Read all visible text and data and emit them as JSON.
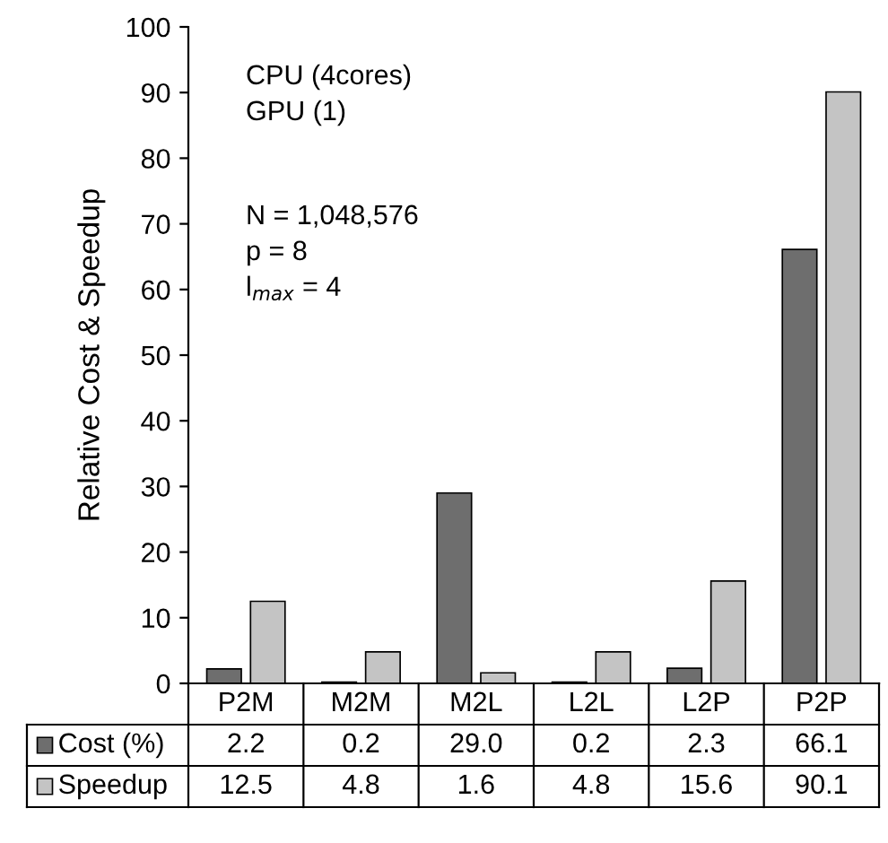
{
  "chart_data": {
    "type": "bar",
    "ylabel": "Relative Cost & Speedup",
    "categories": [
      "P2M",
      "M2M",
      "M2L",
      "L2L",
      "L2P",
      "P2P"
    ],
    "series": [
      {
        "name": "Cost (%)",
        "color": "#6e6e6e",
        "values": [
          2.2,
          0.2,
          29.0,
          0.2,
          2.3,
          66.1
        ],
        "value_labels": [
          "2.2",
          "0.2",
          "29.0",
          "0.2",
          "2.3",
          "66.1"
        ]
      },
      {
        "name": "Speedup",
        "color": "#c4c4c4",
        "values": [
          12.5,
          4.8,
          1.6,
          4.8,
          15.6,
          90.1
        ],
        "value_labels": [
          "12.5",
          "4.8",
          "1.6",
          "4.8",
          "15.6",
          "90.1"
        ]
      }
    ],
    "legend": "bottom",
    "ylim": [
      0,
      100
    ],
    "yticks": [
      0,
      10,
      20,
      30,
      40,
      50,
      60,
      70,
      80,
      90,
      100
    ],
    "grid": false,
    "annotations": [
      "CPU (4cores)",
      "GPU (1)",
      "N = 1,048,576",
      "p = 8",
      "l$_{max}$ = 4"
    ]
  }
}
